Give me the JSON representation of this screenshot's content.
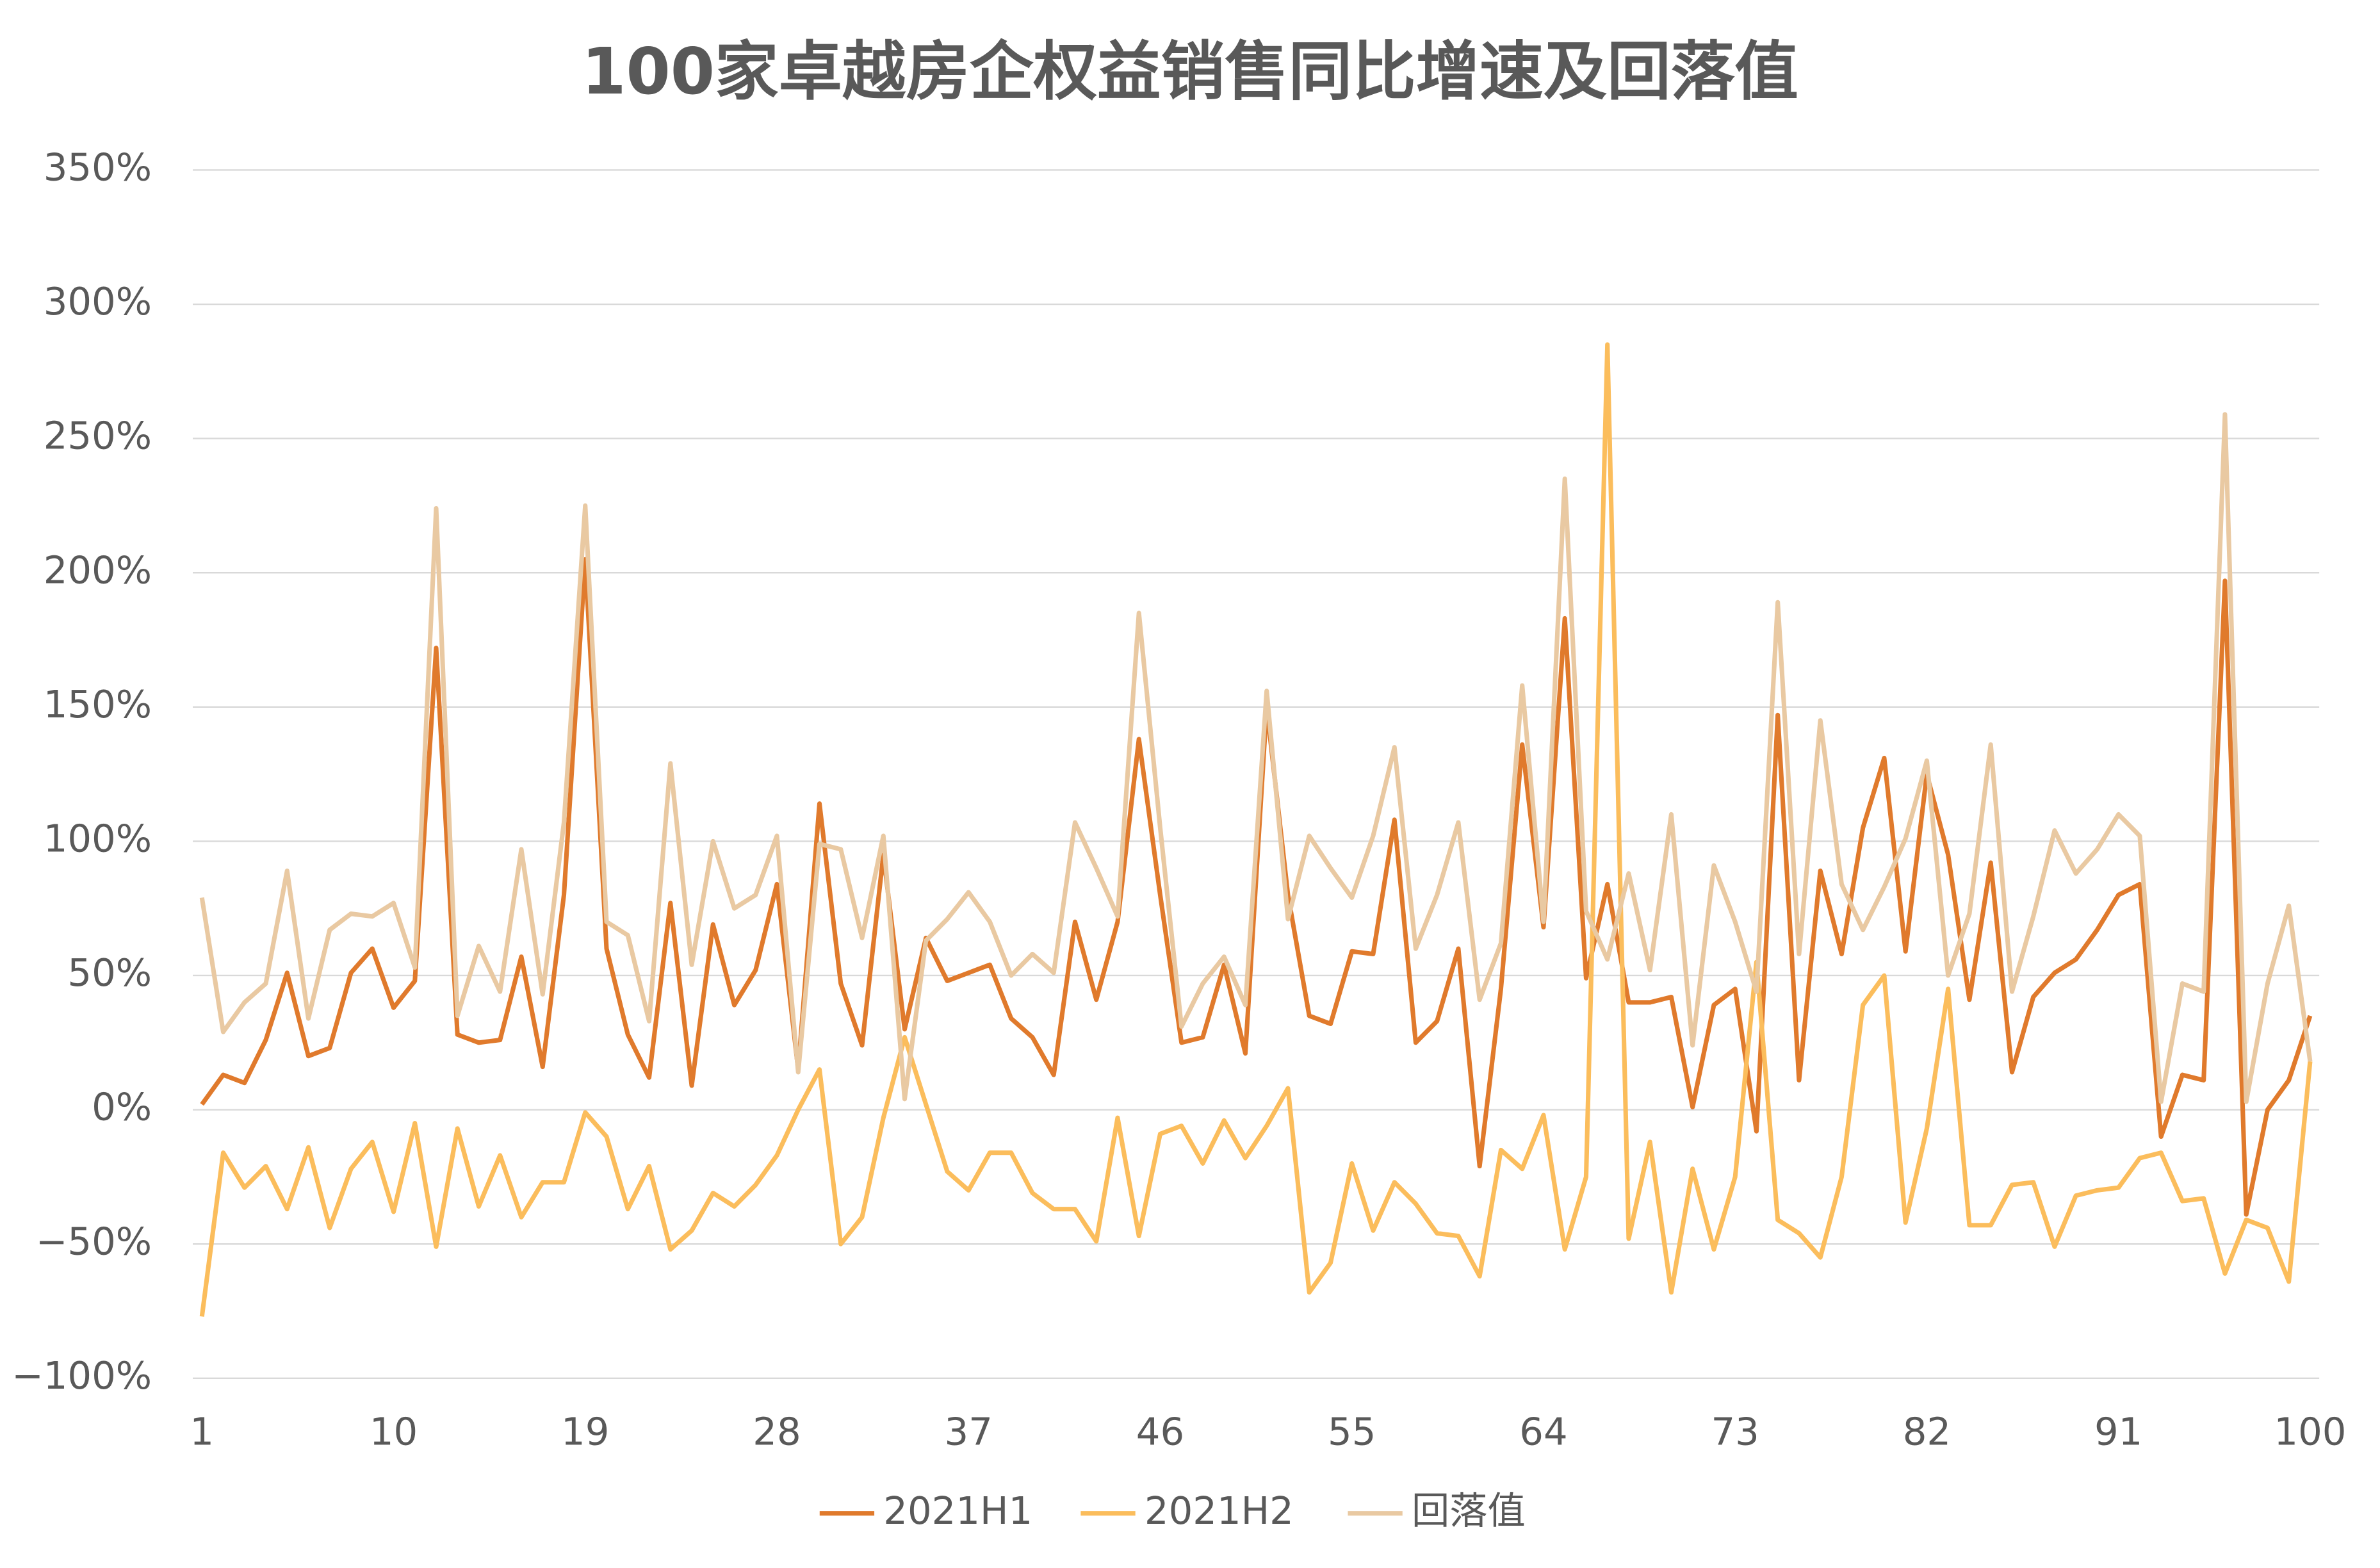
{
  "chart_data": {
    "type": "line",
    "title": "100家卓越房企权益销售同比增速及回落值",
    "x": [
      1,
      2,
      3,
      4,
      5,
      6,
      7,
      8,
      9,
      10,
      11,
      12,
      13,
      14,
      15,
      16,
      17,
      18,
      19,
      20,
      21,
      22,
      23,
      24,
      25,
      26,
      27,
      28,
      29,
      30,
      31,
      32,
      33,
      34,
      35,
      36,
      37,
      38,
      39,
      40,
      41,
      42,
      43,
      44,
      45,
      46,
      47,
      48,
      49,
      50,
      51,
      52,
      53,
      54,
      55,
      56,
      57,
      58,
      59,
      60,
      61,
      62,
      63,
      64,
      65,
      66,
      67,
      68,
      69,
      70,
      71,
      72,
      73,
      74,
      75,
      76,
      77,
      78,
      79,
      80,
      81,
      82,
      83,
      84,
      85,
      86,
      87,
      88,
      89,
      90,
      91,
      92,
      93,
      94,
      95,
      96,
      97,
      98,
      99,
      100
    ],
    "series": [
      {
        "name": "2021H1",
        "color": "#e07a2c",
        "values": [
          2,
          13,
          10,
          26,
          51,
          20,
          23,
          51,
          60,
          38,
          48,
          172,
          28,
          25,
          26,
          57,
          16,
          80,
          205,
          60,
          28,
          12,
          77,
          9,
          69,
          39,
          52,
          84,
          15,
          114,
          47,
          24,
          95,
          30,
          64,
          48,
          51,
          54,
          34,
          27,
          13,
          70,
          41,
          70,
          138,
          80,
          25,
          27,
          54,
          21,
          150,
          80,
          35,
          32,
          59,
          58,
          108,
          25,
          33,
          60,
          -21,
          45,
          136,
          68,
          183,
          49,
          84,
          40,
          40,
          42,
          1,
          39,
          45,
          -8,
          147,
          11,
          89,
          58,
          105,
          131,
          59,
          125,
          95,
          41,
          92,
          14,
          42,
          51,
          56,
          67,
          80,
          84,
          -10,
          13,
          11,
          197,
          -39,
          0,
          11,
          35
        ]
      },
      {
        "name": "2021H2",
        "color": "#fbbd5c",
        "values": [
          -77,
          -16,
          -29,
          -21,
          -37,
          -14,
          -44,
          -22,
          -12,
          -38,
          -5,
          -51,
          -7,
          -36,
          -17,
          -40,
          -27,
          -27,
          -1,
          -10,
          -37,
          -21,
          -52,
          -45,
          -31,
          -36,
          -28,
          -17,
          0,
          15,
          -50,
          -40,
          -3,
          27,
          2,
          -23,
          -30,
          -16,
          -16,
          -31,
          -37,
          -37,
          -49,
          -3,
          -47,
          -9,
          -6,
          -20,
          -4,
          -18,
          -6,
          8,
          -68,
          -57,
          -20,
          -45,
          -27,
          -35,
          -46,
          -47,
          -62,
          -15,
          -22,
          -2,
          -52,
          -25,
          285,
          -48,
          -12,
          -68,
          -22,
          -52,
          -25,
          55,
          -41,
          -46,
          -55,
          -25,
          39,
          50,
          -42,
          -7,
          45,
          -43,
          -43,
          -28,
          -27,
          -51,
          -32,
          -30,
          -29,
          -18,
          -16,
          -34,
          -33,
          -61,
          -41,
          -44,
          -64,
          18
        ]
      },
      {
        "name": "回落值",
        "color": "#e9c9a2",
        "values": [
          79,
          29,
          40,
          47,
          89,
          34,
          67,
          73,
          72,
          77,
          53,
          224,
          35,
          61,
          44,
          97,
          43,
          107,
          225,
          70,
          65,
          33,
          129,
          54,
          100,
          75,
          80,
          102,
          14,
          99,
          97,
          64,
          102,
          4,
          63,
          71,
          81,
          70,
          50,
          58,
          51,
          107,
          90,
          72,
          185,
          105,
          31,
          47,
          57,
          39,
          156,
          71,
          102,
          90,
          79,
          102,
          135,
          60,
          80,
          107,
          41,
          62,
          158,
          70,
          235,
          74,
          56,
          88,
          52,
          110,
          24,
          91,
          70,
          44,
          189,
          58,
          145,
          84,
          67,
          83,
          101,
          130,
          50,
          73,
          136,
          44,
          72,
          104,
          88,
          97,
          110,
          102,
          3,
          47,
          44,
          259,
          3,
          47,
          76,
          18
        ]
      }
    ],
    "xlim": [
      1,
      100
    ],
    "xticks": [
      1,
      10,
      19,
      28,
      37,
      46,
      55,
      64,
      73,
      82,
      91,
      100
    ],
    "ylim": [
      -100,
      350
    ],
    "yticks": [
      {
        "value": -100,
        "label": "−100%"
      },
      {
        "value": -50,
        "label": "−50%"
      },
      {
        "value": 0,
        "label": "0%"
      },
      {
        "value": 50,
        "label": "50%"
      },
      {
        "value": 100,
        "label": "100%"
      },
      {
        "value": 150,
        "label": "150%"
      },
      {
        "value": 200,
        "label": "200%"
      },
      {
        "value": 250,
        "label": "250%"
      },
      {
        "value": 300,
        "label": "300%"
      },
      {
        "value": 350,
        "label": "350%"
      }
    ],
    "grid": true,
    "legend": "bottom"
  }
}
